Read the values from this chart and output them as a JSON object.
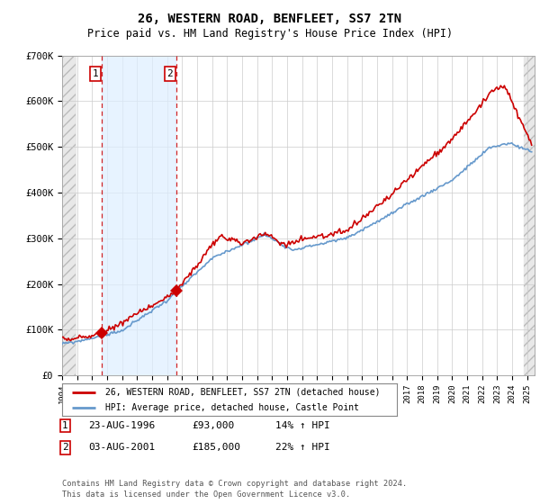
{
  "title": "26, WESTERN ROAD, BENFLEET, SS7 2TN",
  "subtitle": "Price paid vs. HM Land Registry's House Price Index (HPI)",
  "legend_line1": "26, WESTERN ROAD, BENFLEET, SS7 2TN (detached house)",
  "legend_line2": "HPI: Average price, detached house, Castle Point",
  "transaction1_date": "23-AUG-1996",
  "transaction1_price": "£93,000",
  "transaction1_hpi": "14% ↑ HPI",
  "transaction1_year": 1996.64,
  "transaction1_value": 93000,
  "transaction2_date": "03-AUG-2001",
  "transaction2_price": "£185,000",
  "transaction2_hpi": "22% ↑ HPI",
  "transaction2_year": 2001.59,
  "transaction2_value": 185000,
  "copyright": "Contains HM Land Registry data © Crown copyright and database right 2024.\nThis data is licensed under the Open Government Licence v3.0.",
  "hpi_color": "#6699cc",
  "price_color": "#cc0000",
  "bg_color": "#ffffff",
  "grid_color": "#cccccc",
  "highlight_bg": "#ddeeff",
  "ylim": [
    0,
    700000
  ],
  "xlim_start": 1994,
  "xlim_end": 2025.5
}
